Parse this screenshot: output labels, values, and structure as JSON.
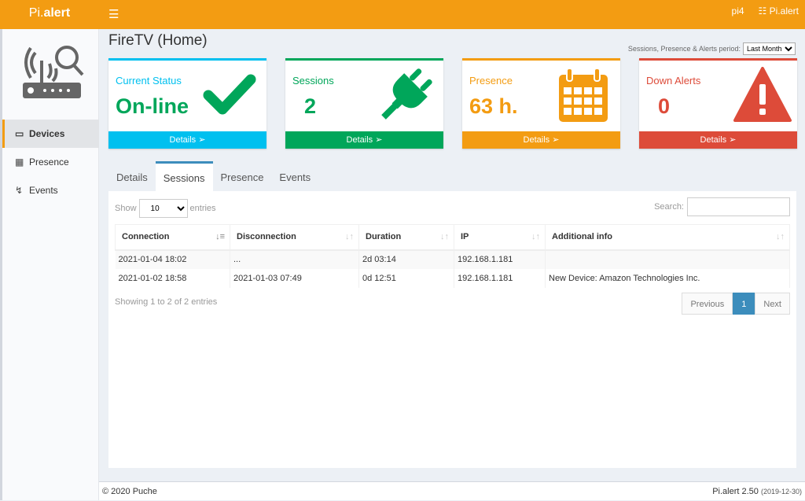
{
  "header": {
    "logo_light": "Pi.",
    "logo_bold": "alert",
    "user": "pi4",
    "app": "Pi.alert"
  },
  "sidebar": {
    "items": [
      {
        "label": "Devices",
        "icon": "laptop-icon"
      },
      {
        "label": "Presence",
        "icon": "calendar-icon"
      },
      {
        "label": "Events",
        "icon": "bolt-icon"
      }
    ]
  },
  "page": {
    "title": "FireTV (Home)",
    "period_label": "Sessions, Presence & Alerts period:",
    "period_value": "Last Month"
  },
  "boxes": [
    {
      "label": "Current Status",
      "value": "On-line",
      "details": "Details",
      "color": "#00c0ef",
      "value_color": "#00a65a",
      "icon": "check-icon"
    },
    {
      "label": "Sessions",
      "value": "2",
      "details": "Details",
      "color": "#00a65a",
      "value_color": "#00a65a",
      "icon": "plug-icon"
    },
    {
      "label": "Presence",
      "value": "63 h.",
      "details": "Details",
      "color": "#f39c12",
      "value_color": "#f39c12",
      "icon": "calendar-icon"
    },
    {
      "label": "Down Alerts",
      "value": "0",
      "details": "Details",
      "color": "#dd4b39",
      "value_color": "#dd4b39",
      "icon": "warning-icon"
    }
  ],
  "tabs": [
    "Details",
    "Sessions",
    "Presence",
    "Events"
  ],
  "table": {
    "show": "Show",
    "entries": "entries",
    "page_size": "10",
    "search_label": "Search:",
    "search_value": "",
    "columns": [
      "Connection",
      "Disconnection",
      "Duration",
      "IP",
      "Additional info"
    ],
    "rows": [
      [
        "2021-01-04  18:02",
        "...",
        "2d  03:14",
        "192.168.1.181",
        ""
      ],
      [
        "2021-01-02  18:58",
        "2021-01-03  07:49",
        "0d  12:51",
        "192.168.1.181",
        "New Device:  Amazon Technologies Inc."
      ]
    ],
    "info": "Showing 1 to 2 of 2 entries",
    "pager": {
      "prev": "Previous",
      "page": "1",
      "next": "Next"
    }
  },
  "footer": {
    "copyright": "© 2020 Puche",
    "version": "Pi.alert  2.50",
    "date": "(2019-12-30)"
  }
}
